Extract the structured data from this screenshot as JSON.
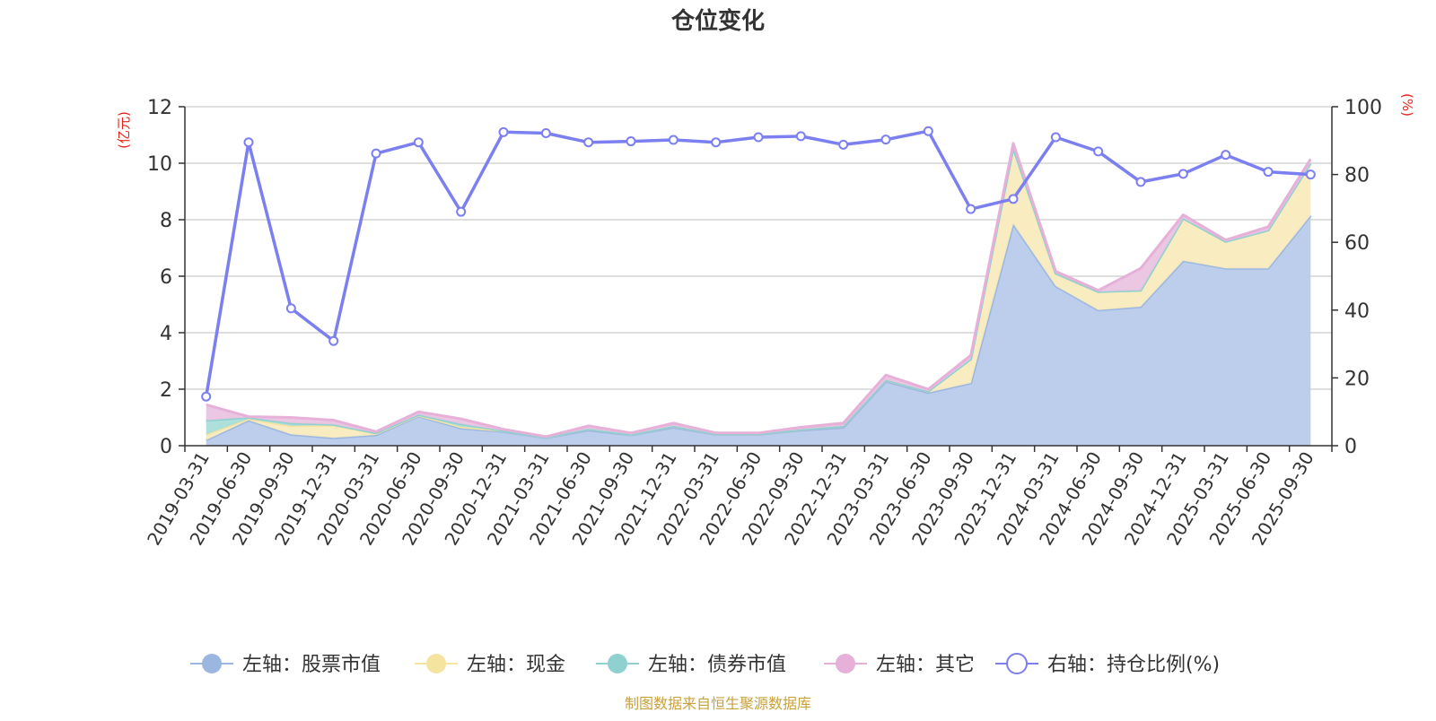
{
  "chart_data": {
    "type": "area",
    "title": "仓位变化",
    "left_axis_label": "(亿元)",
    "right_axis_label": "(%)",
    "left_ylim": [
      0,
      12
    ],
    "left_ticks": [
      0,
      2,
      4,
      6,
      8,
      10,
      12
    ],
    "right_ylim": [
      0,
      100
    ],
    "right_ticks": [
      0,
      20,
      40,
      60,
      80,
      100
    ],
    "categories": [
      "2019-03-31",
      "2019-06-30",
      "2019-09-30",
      "2019-12-31",
      "2020-03-31",
      "2020-06-30",
      "2020-09-30",
      "2020-12-31",
      "2021-03-31",
      "2021-06-30",
      "2021-09-30",
      "2021-12-31",
      "2022-03-31",
      "2022-06-30",
      "2022-09-30",
      "2022-12-31",
      "2023-03-31",
      "2023-06-30",
      "2023-09-30",
      "2023-12-31",
      "2024-03-31",
      "2024-06-30",
      "2024-09-30",
      "2024-12-31",
      "2025-03-31",
      "2025-06-30",
      "2025-09-30"
    ],
    "stacked_series": [
      {
        "name": "左轴：股票市值",
        "color": "#9bb7e0",
        "fill": "#b8cbea",
        "values": [
          0.2,
          0.9,
          0.4,
          0.28,
          0.38,
          1.05,
          0.62,
          0.5,
          0.28,
          0.55,
          0.38,
          0.65,
          0.4,
          0.4,
          0.55,
          0.65,
          2.28,
          1.88,
          2.22,
          7.85,
          5.65,
          4.8,
          4.92,
          6.55,
          6.28,
          6.28,
          8.15
        ]
      },
      {
        "name": "左轴：现金",
        "color": "#f5e3a0",
        "fill": "#f9ebbe",
        "values": [
          0.2,
          0.05,
          0.3,
          0.45,
          0.05,
          0.03,
          0.05,
          0.03,
          0.02,
          0.05,
          0.02,
          0.05,
          0.02,
          0.02,
          0.03,
          0.05,
          0.05,
          0.05,
          0.85,
          2.7,
          0.45,
          0.65,
          0.58,
          1.5,
          0.95,
          1.35,
          1.85
        ]
      },
      {
        "name": "左轴：债券市值",
        "color": "#8ed1d0",
        "fill": "#a9ddd9",
        "values": [
          0.5,
          0.05,
          0.1,
          0.02,
          0.02,
          0.02,
          0.1,
          0.0,
          0.0,
          0.0,
          0.0,
          0.0,
          0.0,
          0.0,
          0.0,
          0.0,
          0.0,
          0.0,
          0.0,
          0.0,
          0.0,
          0.0,
          0.0,
          0.0,
          0.0,
          0.0,
          0.0
        ]
      },
      {
        "name": "左轴：其它",
        "color": "#e6b0d8",
        "fill": "#ebc4e2",
        "values": [
          0.55,
          0.03,
          0.2,
          0.15,
          0.05,
          0.1,
          0.18,
          0.05,
          0.02,
          0.1,
          0.05,
          0.1,
          0.03,
          0.03,
          0.07,
          0.1,
          0.17,
          0.07,
          0.13,
          0.15,
          0.07,
          0.05,
          0.78,
          0.12,
          0.05,
          0.12,
          0.15
        ]
      }
    ],
    "line_series": {
      "name": "右轴：持仓比例(%)",
      "color": "#7b7ff0",
      "values": [
        14.5,
        89.5,
        40.5,
        30.9,
        86.2,
        89.5,
        69.0,
        92.5,
        92.2,
        89.5,
        89.8,
        90.2,
        89.5,
        91.0,
        91.3,
        88.8,
        90.3,
        92.8,
        69.8,
        72.8,
        91.0,
        86.8,
        77.8,
        80.2,
        85.8,
        80.8,
        80.0
      ]
    },
    "legend": [
      "左轴：股票市值",
      "左轴：现金",
      "左轴：债券市值",
      "左轴：其它",
      "右轴：持仓比例(%)"
    ],
    "source_note": "制图数据来自恒生聚源数据库"
  }
}
